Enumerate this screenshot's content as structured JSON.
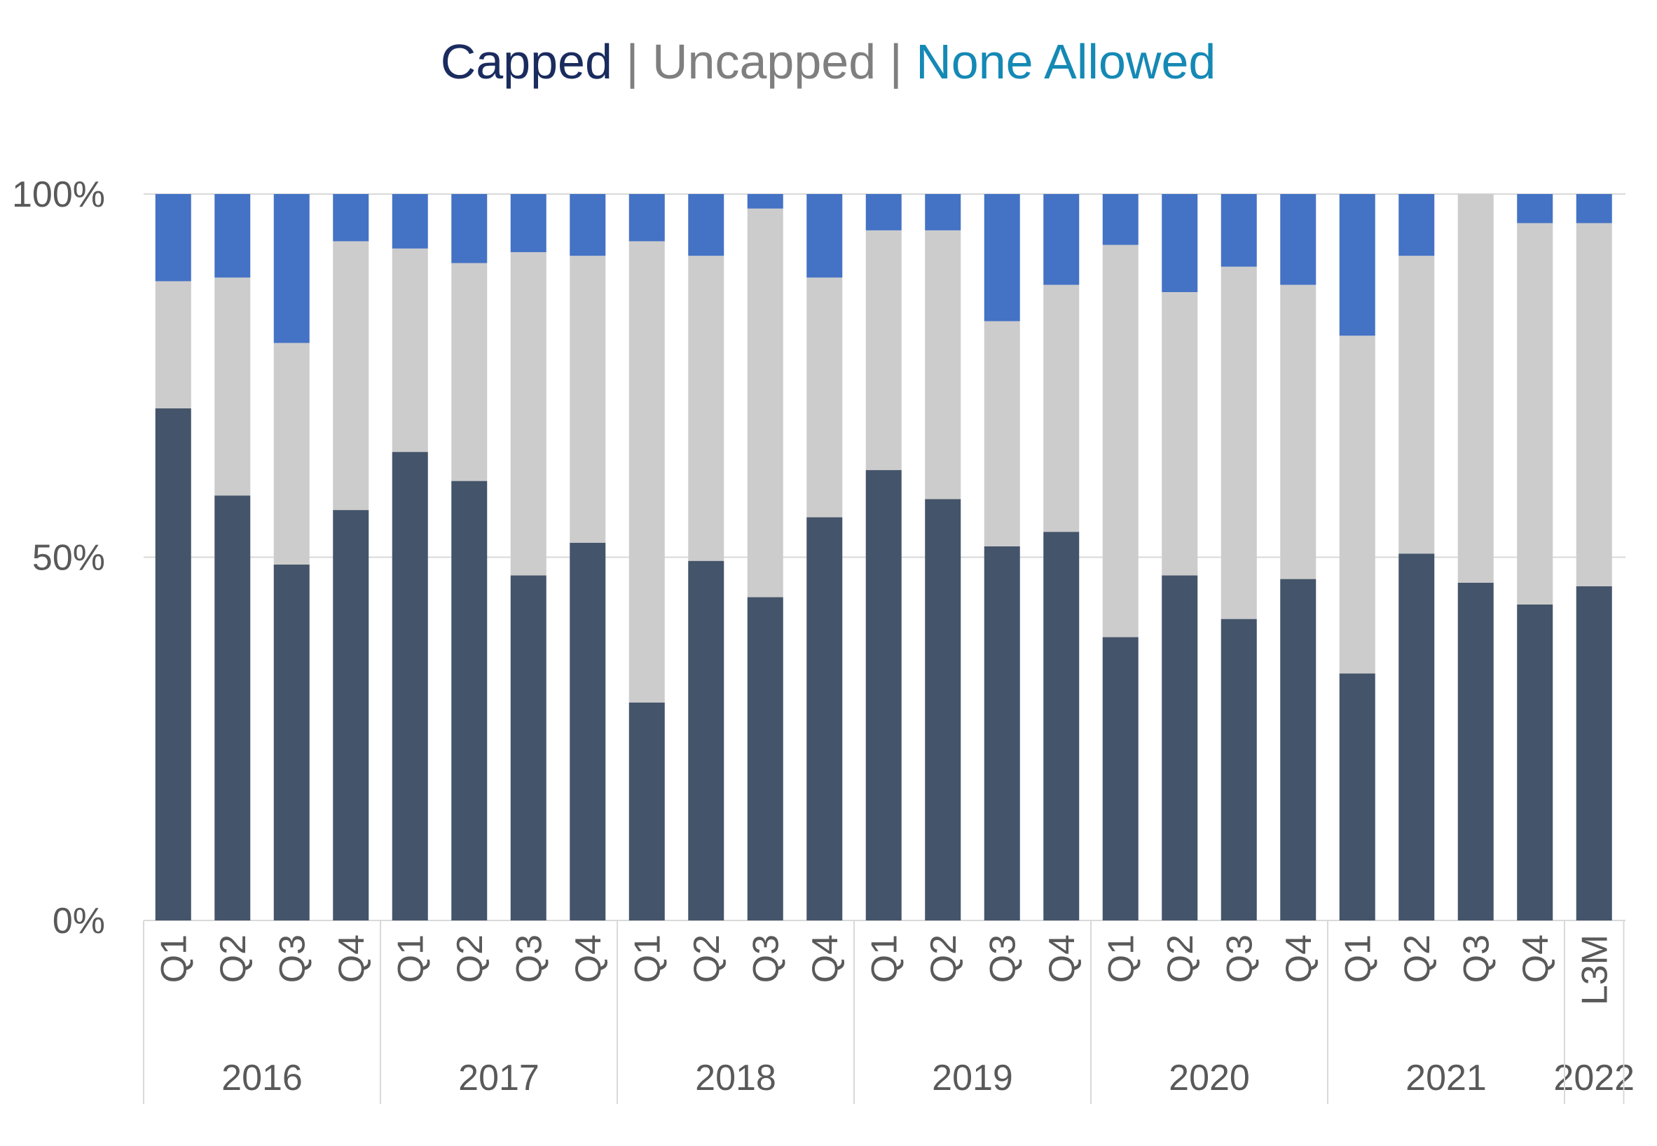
{
  "chart_data": {
    "type": "bar",
    "stacked": true,
    "title_parts": [
      {
        "text": "Capped",
        "color": "#1a2b5e"
      },
      {
        "text": " | ",
        "color": "#7f7f7f"
      },
      {
        "text": "Uncapped",
        "color": "#7f7f7f"
      },
      {
        "text": " | ",
        "color": "#7f7f7f"
      },
      {
        "text": "None Allowed",
        "color": "#1589b5"
      }
    ],
    "ylim": [
      0,
      100
    ],
    "yticks": [
      {
        "value": 0,
        "label": "0%"
      },
      {
        "value": 50,
        "label": "50%"
      },
      {
        "value": 100,
        "label": "100%"
      }
    ],
    "grid": true,
    "categories": [
      "Q1",
      "Q2",
      "Q3",
      "Q4",
      "Q1",
      "Q2",
      "Q3",
      "Q4",
      "Q1",
      "Q2",
      "Q3",
      "Q4",
      "Q1",
      "Q2",
      "Q3",
      "Q4",
      "Q1",
      "Q2",
      "Q3",
      "Q4",
      "Q1",
      "Q2",
      "Q3",
      "Q4",
      "L3M"
    ],
    "groups": [
      {
        "label": "2016",
        "count": 4
      },
      {
        "label": "2017",
        "count": 4
      },
      {
        "label": "2018",
        "count": 4
      },
      {
        "label": "2019",
        "count": 4
      },
      {
        "label": "2020",
        "count": 4
      },
      {
        "label": "2021",
        "count": 4
      },
      {
        "label": "2022",
        "count": 1
      }
    ],
    "series": [
      {
        "key": "capped",
        "color": "#44546a",
        "values": [
          70.5,
          58.5,
          49,
          56.5,
          64.5,
          60.5,
          47.5,
          52,
          30,
          49.5,
          44.5,
          55.5,
          62,
          58,
          51.5,
          53.5,
          39,
          47.5,
          41.5,
          47,
          34,
          50.5,
          46.5,
          43.5,
          46
        ]
      },
      {
        "key": "uncapped",
        "color": "#cccccc",
        "values": [
          17.5,
          30,
          30.5,
          37,
          28,
          30,
          44.5,
          39.5,
          63.5,
          42,
          53.5,
          33,
          33,
          37,
          31,
          34,
          54,
          39,
          48.5,
          40.5,
          46.5,
          41,
          53.5,
          52.5,
          50
        ]
      },
      {
        "key": "none_allowed",
        "color": "#4472c4",
        "values": [
          12,
          11.5,
          20.5,
          6.5,
          7.5,
          9.5,
          8,
          8.5,
          6.5,
          8.5,
          2,
          11.5,
          5,
          5,
          17.5,
          12.5,
          7,
          13.5,
          10,
          12.5,
          19.5,
          8.5,
          0,
          4,
          4
        ]
      }
    ]
  }
}
